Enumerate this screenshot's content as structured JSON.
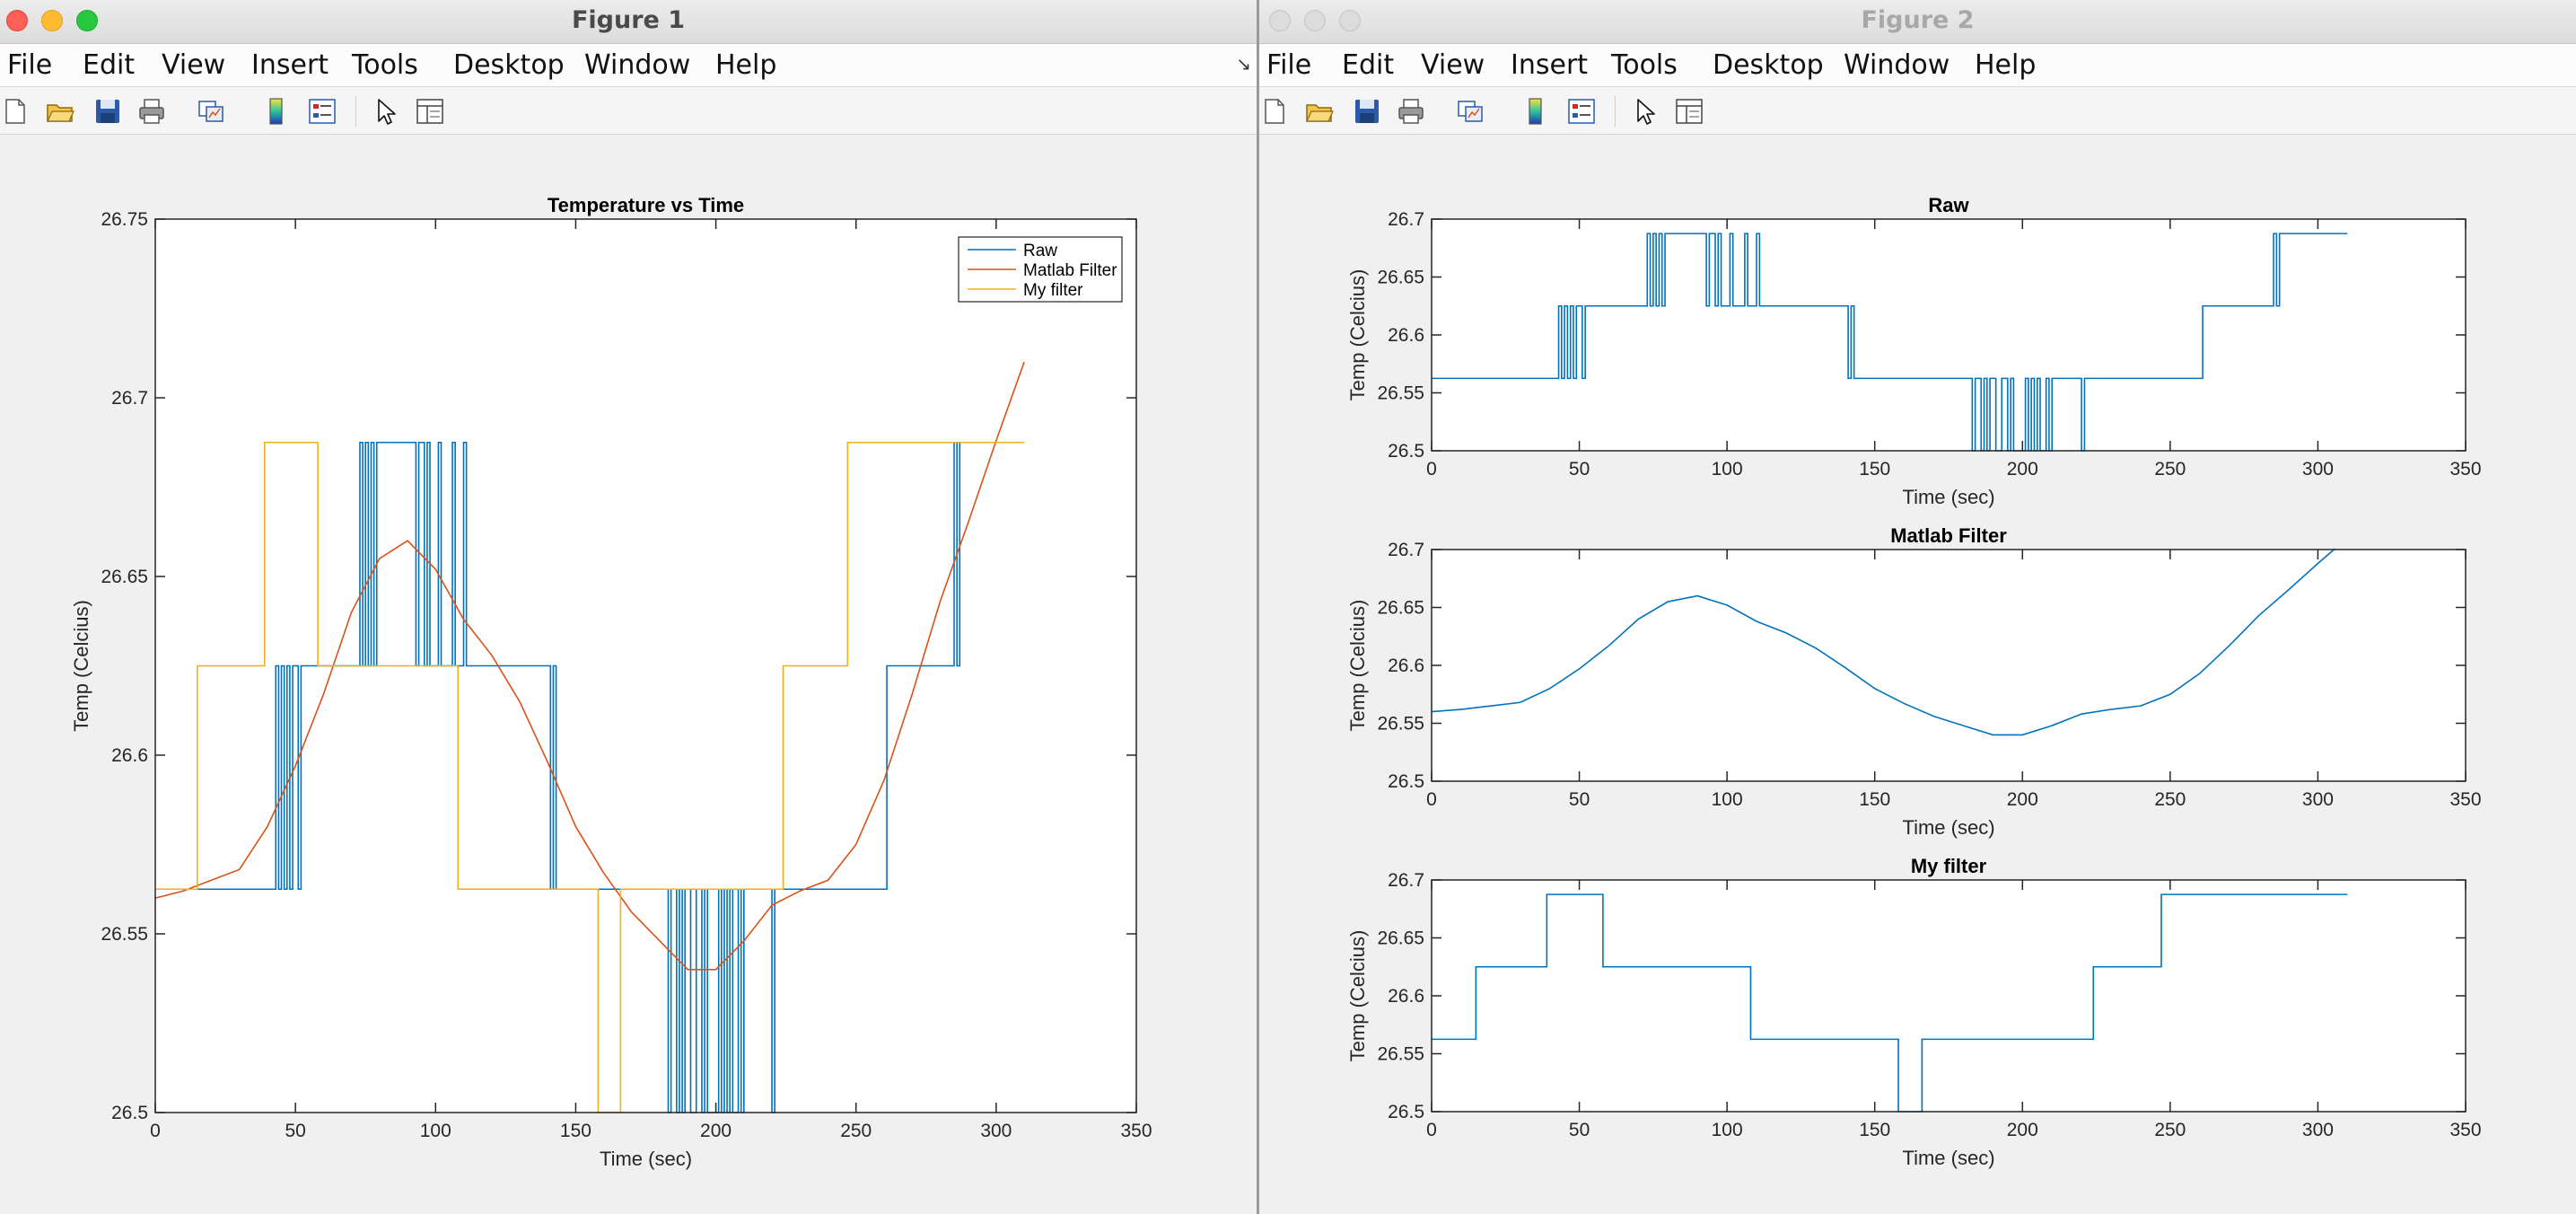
{
  "windows": [
    {
      "title": "Figure 1",
      "menus": [
        "File",
        "Edit",
        "View",
        "Insert",
        "Tools",
        "Desktop",
        "Window",
        "Help"
      ]
    },
    {
      "title": "Figure 2",
      "menus": [
        "File",
        "Edit",
        "View",
        "Insert",
        "Tools",
        "Desktop",
        "Window",
        "Help"
      ]
    }
  ],
  "toolbar_icons": [
    "new-figure-icon",
    "open-file-icon",
    "save-icon",
    "print-icon",
    "link-plot-icon",
    "colorbar-icon",
    "legend-icon",
    "pointer-icon",
    "property-inspector-icon"
  ],
  "colors": {
    "raw": "#0072BD",
    "matlab": "#D95319",
    "myfilter": "#EDB120"
  },
  "chart_data": [
    {
      "type": "line",
      "title": "Temperature vs Time",
      "xlabel": "Time (sec)",
      "ylabel": "Temp (Celcius)",
      "xlim": [
        0,
        350
      ],
      "ylim": [
        26.5,
        26.75
      ],
      "xticks": [
        "0",
        "50",
        "100",
        "150",
        "200",
        "250",
        "300",
        "350"
      ],
      "yticks": [
        "26.5",
        "26.55",
        "26.6",
        "26.65",
        "26.7",
        "26.75"
      ],
      "legend_position": "top-right",
      "series": [
        {
          "name": "Raw",
          "color": "#0072BD",
          "ref": "raw"
        },
        {
          "name": "Matlab Filter",
          "color": "#D95319",
          "ref": "matlab"
        },
        {
          "name": "My filter",
          "color": "#EDB120",
          "ref": "myfilter"
        }
      ]
    },
    {
      "type": "line",
      "title": "Raw",
      "xlabel": "Time (sec)",
      "ylabel": "Temp (Celcius)",
      "xlim": [
        0,
        350
      ],
      "ylim": [
        26.5,
        26.7
      ],
      "xticks": [
        "0",
        "50",
        "100",
        "150",
        "200",
        "250",
        "300",
        "350"
      ],
      "yticks": [
        "26.5",
        "26.55",
        "26.6",
        "26.65",
        "26.7"
      ],
      "series": [
        {
          "color": "#0072BD",
          "ref": "raw"
        }
      ]
    },
    {
      "type": "line",
      "title": "Matlab Filter",
      "xlabel": "Time (sec)",
      "ylabel": "Temp (Celcius)",
      "xlim": [
        0,
        350
      ],
      "ylim": [
        26.5,
        26.7
      ],
      "xticks": [
        "0",
        "50",
        "100",
        "150",
        "200",
        "250",
        "300",
        "350"
      ],
      "yticks": [
        "26.5",
        "26.55",
        "26.6",
        "26.65",
        "26.7"
      ],
      "series": [
        {
          "color": "#0072BD",
          "ref": "matlab"
        }
      ]
    },
    {
      "type": "line",
      "title": "My filter",
      "xlabel": "Time (sec)",
      "ylabel": "Temp (Celcius)",
      "xlim": [
        0,
        350
      ],
      "ylim": [
        26.5,
        26.7
      ],
      "xticks": [
        "0",
        "50",
        "100",
        "150",
        "200",
        "250",
        "300",
        "350"
      ],
      "yticks": [
        "26.5",
        "26.55",
        "26.6",
        "26.65",
        "26.7"
      ],
      "series": [
        {
          "color": "#0072BD",
          "ref": "myfilter"
        }
      ]
    }
  ],
  "series_values": {
    "raw": {
      "x": [
        0,
        43,
        43,
        44,
        44,
        45,
        45,
        46,
        46,
        47,
        47,
        48,
        48,
        49,
        49,
        51,
        51,
        52,
        52,
        73,
        73,
        74,
        74,
        75,
        75,
        76,
        76,
        77,
        77,
        78,
        78,
        79,
        79,
        93,
        93,
        94,
        94,
        96,
        96,
        97,
        97,
        98,
        98,
        101,
        101,
        102,
        102,
        106,
        106,
        107,
        107,
        110,
        110,
        111,
        111,
        141,
        141,
        142,
        142,
        143,
        143,
        144,
        144,
        183,
        183,
        184,
        184,
        186,
        186,
        187,
        187,
        188,
        188,
        189,
        189,
        191,
        191,
        193,
        193,
        195,
        195,
        196,
        196,
        197,
        197,
        201,
        201,
        202,
        202,
        203,
        203,
        204,
        204,
        205,
        205,
        206,
        206,
        208,
        208,
        209,
        209,
        210,
        210,
        220,
        220,
        221,
        221,
        261,
        261,
        262,
        262,
        285,
        285,
        286,
        286,
        287,
        287,
        310
      ],
      "y": [
        26.5625,
        26.5625,
        26.625,
        26.625,
        26.5625,
        26.5625,
        26.625,
        26.625,
        26.5625,
        26.5625,
        26.625,
        26.625,
        26.5625,
        26.5625,
        26.625,
        26.625,
        26.5625,
        26.5625,
        26.625,
        26.625,
        26.6875,
        26.6875,
        26.625,
        26.625,
        26.6875,
        26.6875,
        26.625,
        26.625,
        26.6875,
        26.6875,
        26.625,
        26.625,
        26.6875,
        26.6875,
        26.625,
        26.625,
        26.6875,
        26.6875,
        26.625,
        26.625,
        26.6875,
        26.6875,
        26.625,
        26.625,
        26.6875,
        26.6875,
        26.625,
        26.625,
        26.6875,
        26.6875,
        26.625,
        26.625,
        26.6875,
        26.6875,
        26.625,
        26.625,
        26.5625,
        26.5625,
        26.625,
        26.625,
        26.5625,
        26.5625,
        26.5625,
        26.5625,
        26.5,
        26.5,
        26.5625,
        26.5625,
        26.5,
        26.5,
        26.5625,
        26.5625,
        26.5,
        26.5,
        26.5625,
        26.5625,
        26.5,
        26.5,
        26.5625,
        26.5625,
        26.5,
        26.5,
        26.5625,
        26.5625,
        26.5,
        26.5,
        26.5625,
        26.5625,
        26.5,
        26.5,
        26.5625,
        26.5625,
        26.5,
        26.5,
        26.5625,
        26.5625,
        26.5,
        26.5,
        26.5625,
        26.5625,
        26.5,
        26.5,
        26.5625,
        26.5625,
        26.5,
        26.5,
        26.5625,
        26.5625,
        26.625,
        26.625,
        26.625,
        26.625,
        26.6875,
        26.6875,
        26.625,
        26.625,
        26.6875,
        26.6875
      ]
    },
    "matlab": {
      "x": [
        0,
        10,
        20,
        30,
        40,
        50,
        60,
        70,
        80,
        90,
        100,
        110,
        120,
        130,
        140,
        150,
        160,
        170,
        180,
        190,
        200,
        210,
        220,
        230,
        240,
        250,
        260,
        270,
        280,
        290,
        300,
        310
      ],
      "y": [
        26.56,
        26.562,
        26.565,
        26.568,
        26.58,
        26.597,
        26.617,
        26.64,
        26.655,
        26.66,
        26.652,
        26.638,
        26.628,
        26.615,
        26.598,
        26.58,
        26.567,
        26.556,
        26.548,
        26.54,
        26.54,
        26.548,
        26.558,
        26.562,
        26.565,
        26.575,
        26.593,
        26.617,
        26.643,
        26.665,
        26.688,
        26.71
      ]
    },
    "myfilter": {
      "x": [
        0,
        15,
        15,
        39,
        39,
        58,
        58,
        108,
        108,
        158,
        158,
        166,
        166,
        224,
        224,
        247,
        247,
        310
      ],
      "y": [
        26.5625,
        26.5625,
        26.625,
        26.625,
        26.6875,
        26.6875,
        26.625,
        26.625,
        26.5625,
        26.5625,
        26.5,
        26.5,
        26.5625,
        26.5625,
        26.625,
        26.625,
        26.6875,
        26.6875
      ]
    }
  }
}
